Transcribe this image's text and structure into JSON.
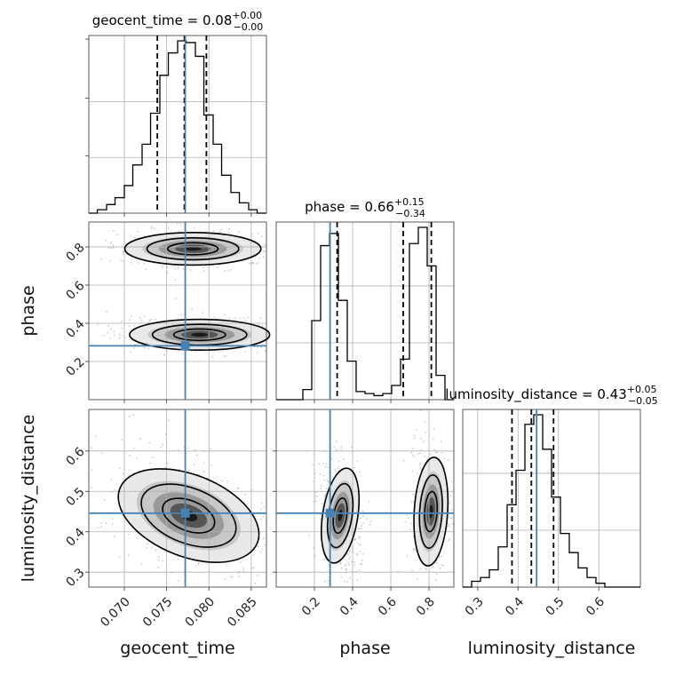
{
  "chart_data": {
    "type": "corner",
    "parameters": [
      "geocent_time",
      "phase",
      "luminosity_distance"
    ],
    "axis_labels": {
      "geocent_time": "geocent_time",
      "phase": "phase",
      "luminosity_distance": "luminosity_distance"
    },
    "ranges": {
      "geocent_time": [
        0.0658,
        0.0868
      ],
      "phase": [
        0.0,
        0.93
      ],
      "luminosity_distance": [
        0.263,
        0.703
      ]
    },
    "ticks": {
      "geocent_time": [
        0.07,
        0.075,
        0.08,
        0.085
      ],
      "phase": [
        0.2,
        0.4,
        0.6,
        0.8
      ],
      "luminosity_distance": [
        0.3,
        0.4,
        0.5,
        0.6
      ]
    },
    "tick_labels": {
      "geocent_time": [
        "0.070",
        "0.075",
        "0.080",
        "0.085"
      ],
      "phase": [
        "0.2",
        "0.4",
        "0.6",
        "0.8"
      ],
      "luminosity_distance": [
        "0.3",
        "0.4",
        "0.5",
        "0.6"
      ]
    },
    "truths": {
      "geocent_time": 0.0772,
      "phase": 0.282,
      "luminosity_distance": 0.446
    },
    "titles": {
      "geocent_time": {
        "name": "geocent_time",
        "value": "0.08",
        "plus": "+0.00",
        "minus": "−0.00"
      },
      "phase": {
        "name": "phase",
        "value": "0.66",
        "plus": "+0.15",
        "minus": "−0.34"
      },
      "luminosity_distance": {
        "name": "luminosity_distance",
        "value": "0.43",
        "plus": "+0.05",
        "minus": "−0.05"
      }
    },
    "quantiles": {
      "geocent_time": [
        0.0739,
        0.0771,
        0.0797
      ],
      "phase": [
        0.319,
        0.665,
        0.812
      ],
      "luminosity_distance": [
        0.385,
        0.433,
        0.488
      ]
    },
    "histograms": {
      "geocent_time": {
        "edges": [
          0.0658,
          0.0668,
          0.0679,
          0.0689,
          0.07,
          0.071,
          0.0721,
          0.0731,
          0.0742,
          0.0752,
          0.0763,
          0.0773,
          0.0784,
          0.0794,
          0.0805,
          0.0815,
          0.0826,
          0.0836,
          0.0847,
          0.0857,
          0.0868
        ],
        "counts": [
          0,
          2,
          5,
          9,
          16,
          28,
          40,
          58,
          80,
          93,
          100,
          99,
          91,
          57,
          40,
          22,
          12,
          6,
          2,
          0
        ]
      },
      "phase": {
        "edges": [
          0.0,
          0.0465,
          0.093,
          0.1395,
          0.186,
          0.2325,
          0.279,
          0.3255,
          0.372,
          0.4185,
          0.465,
          0.5115,
          0.558,
          0.6045,
          0.651,
          0.6975,
          0.744,
          0.7905,
          0.837,
          0.8835,
          0.93
        ],
        "counts": [
          0,
          0,
          0,
          5,
          39,
          76,
          82,
          49,
          19,
          4,
          3,
          2,
          3,
          7,
          20,
          77,
          85,
          66,
          12,
          0
        ]
      },
      "luminosity_distance": {
        "edges": [
          0.263,
          0.285,
          0.307,
          0.329,
          0.351,
          0.373,
          0.395,
          0.417,
          0.439,
          0.461,
          0.483,
          0.505,
          0.527,
          0.549,
          0.571,
          0.593,
          0.615,
          0.637,
          0.659,
          0.681,
          0.703
        ],
        "counts": [
          0,
          3,
          5,
          9,
          21,
          43,
          61,
          85,
          90,
          72,
          47,
          28,
          18,
          10,
          5,
          2,
          0,
          0,
          0,
          0
        ]
      }
    },
    "contour_pairs": [
      {
        "x": "geocent_time",
        "y": "phase",
        "modes": [
          {
            "cx": 0.0781,
            "cy": 0.79,
            "sx": 0.0035,
            "sy": 0.037
          },
          {
            "cx": 0.0789,
            "cy": 0.34,
            "sx": 0.0036,
            "sy": 0.035
          }
        ]
      },
      {
        "x": "geocent_time",
        "y": "luminosity_distance",
        "modes": [
          {
            "cx": 0.0776,
            "cy": 0.44,
            "sx": 0.0038,
            "sy": 0.052,
            "tilt": -0.62
          }
        ]
      },
      {
        "x": "phase",
        "y": "luminosity_distance",
        "modes": [
          {
            "cx": 0.335,
            "cy": 0.44,
            "sx": 0.04,
            "sy": 0.055,
            "tilt": -0.25
          },
          {
            "cx": 0.81,
            "cy": 0.45,
            "sx": 0.038,
            "sy": 0.06,
            "tilt": -0.1
          }
        ]
      }
    ],
    "grid": true,
    "colors": {
      "truth": "#4682b4",
      "hist": "#000000",
      "samples": "#9a9a9a"
    }
  }
}
